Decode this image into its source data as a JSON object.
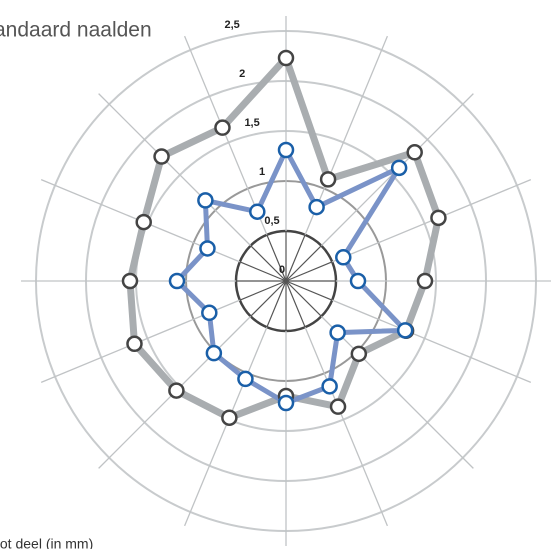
{
  "chart_data": {
    "type": "radar",
    "subtitle": "andaard naalden",
    "axis_label": "tot deel (in mm)",
    "rlim": [
      0,
      2.5
    ],
    "rticks": [
      0,
      {
        "value": 0.5,
        "label": "0,5"
      },
      1,
      {
        "value": 1.5,
        "label": "1,5"
      },
      2,
      {
        "value": 2.5,
        "label": "2,5"
      }
    ],
    "spokes": 16,
    "series": [
      {
        "name": "andaard naalden",
        "color": "#a9adb0",
        "marker_edge": "#444444",
        "values": [
          2.23,
          1.1,
          1.82,
          1.65,
          1.39,
          1.3,
          1.03,
          1.36,
          1.15,
          1.48,
          1.55,
          1.64,
          1.56,
          1.54,
          1.76,
          1.66
        ]
      },
      {
        "color": "#7a93c8",
        "marker_edge": "#1a5fa8",
        "values": [
          1.31,
          0.8,
          1.6,
          0.62,
          0.72,
          1.29,
          0.73,
          1.14,
          1.22,
          1.06,
          1.02,
          0.83,
          1.09,
          0.85,
          1.14,
          0.75
        ]
      }
    ]
  }
}
